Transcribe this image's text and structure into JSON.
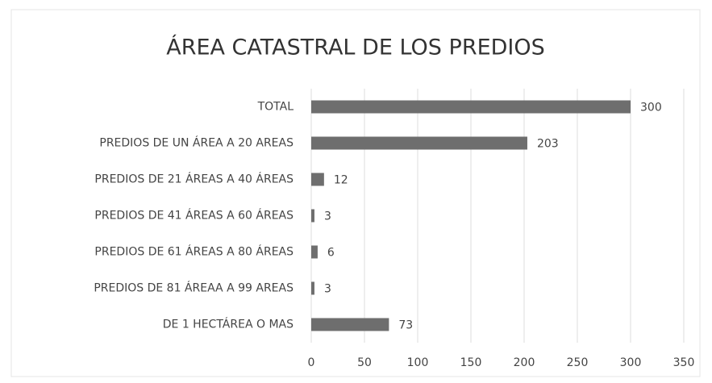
{
  "chart_data": {
    "type": "bar",
    "orientation": "horizontal",
    "title": "ÁREA CATASTRAL DE LOS PREDIOS",
    "categories": [
      "TOTAL",
      "PREDIOS DE UN ÁREA A 20 AREAS",
      "PREDIOS DE 21 ÁREAS A 40 ÁREAS",
      "PREDIOS DE 41 ÁREAS A 60 ÁREAS",
      "PREDIOS DE 61 ÁREAS A 80 ÁREAS",
      "PREDIOS DE 81 ÁREAA A 99 AREAS",
      "DE 1 HECTÁREA O MAS"
    ],
    "values": [
      300,
      203,
      12,
      3,
      6,
      3,
      73
    ],
    "color": "#6e6e6e",
    "xlim": [
      0,
      350
    ],
    "xticks": [
      0,
      50,
      100,
      150,
      200,
      250,
      300,
      350
    ],
    "grid": true
  }
}
